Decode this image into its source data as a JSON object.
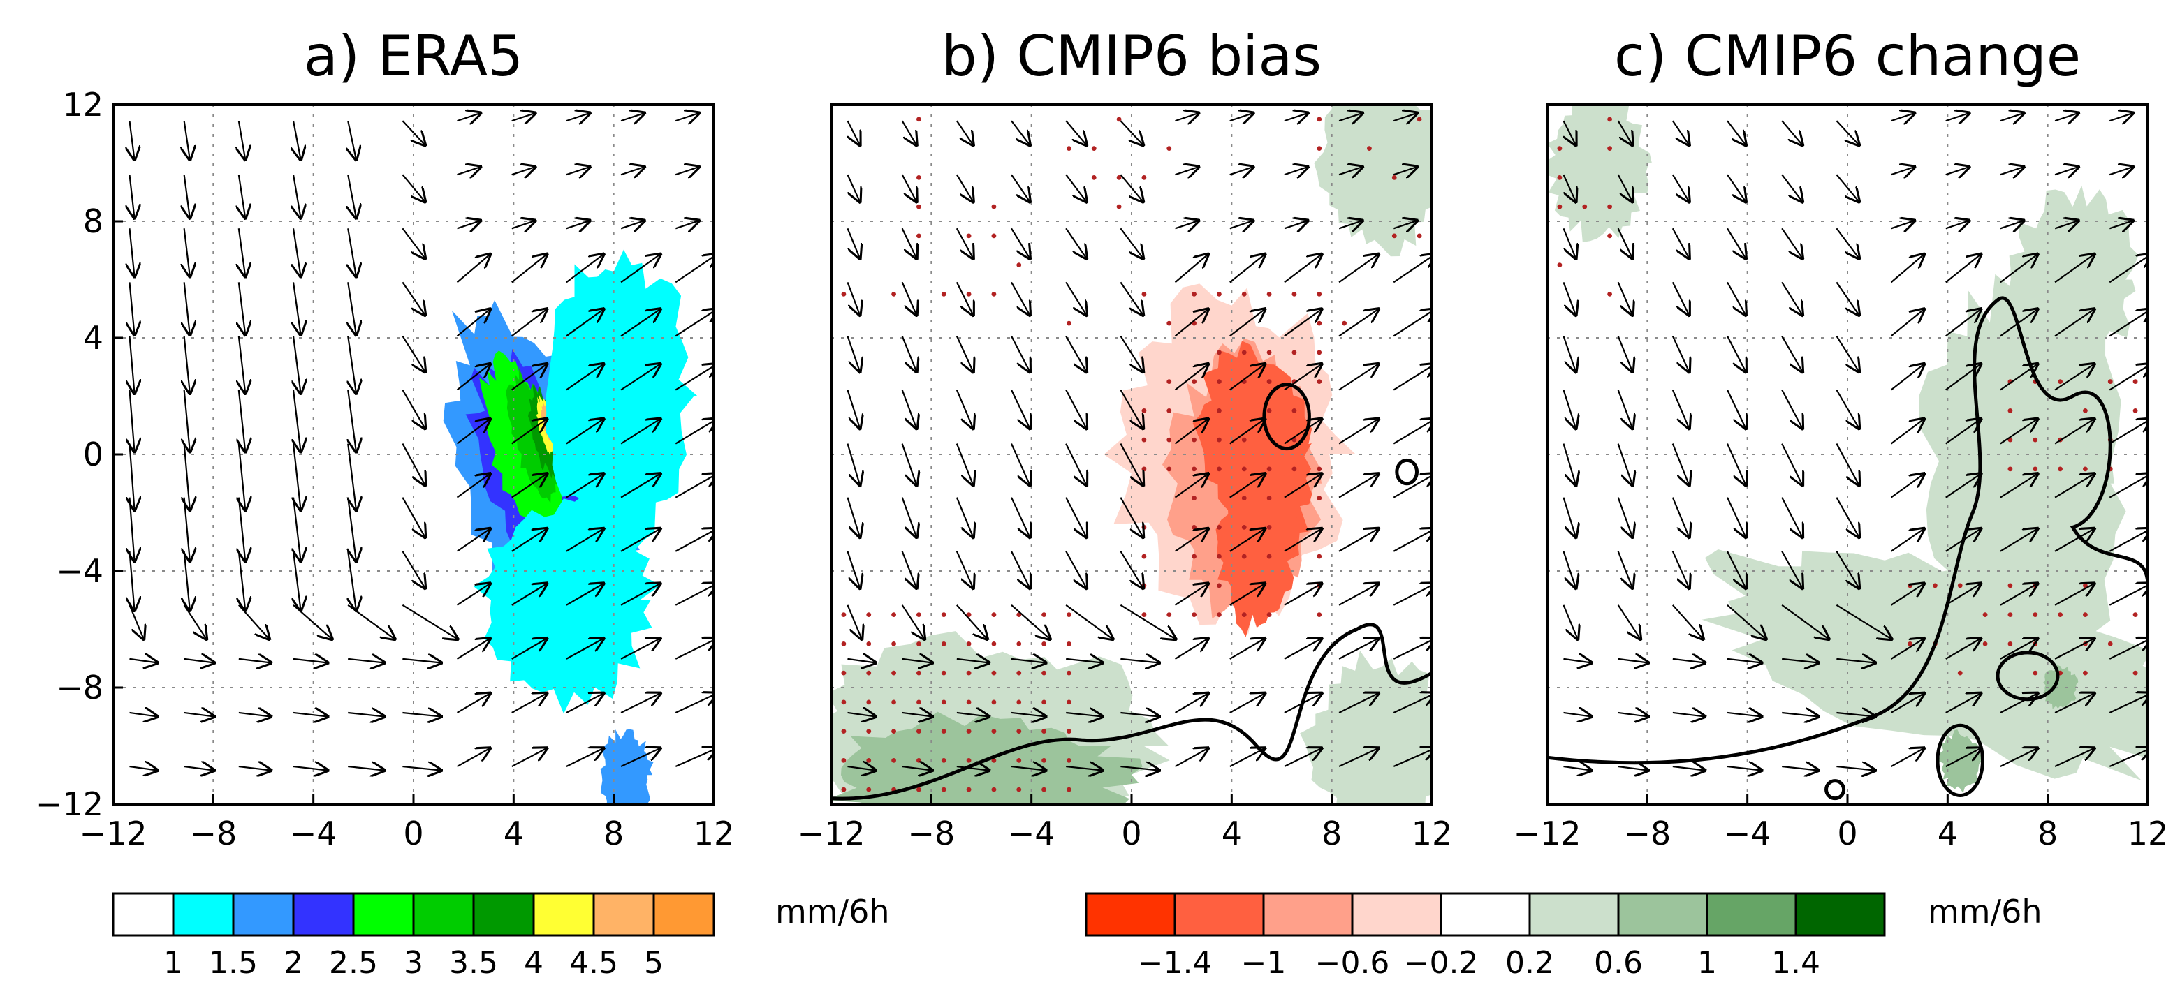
{
  "chart_data": [
    {
      "type": "heatmap",
      "title": "a) ERA5",
      "overlay": "wind vectors",
      "xlim": [
        -12,
        12
      ],
      "ylim": [
        -12,
        12
      ],
      "x_ticks": [
        "-12",
        "-8",
        "-4",
        "0",
        "4",
        "8",
        "12"
      ],
      "y_ticks": [
        "12",
        "8",
        "4",
        "0",
        "-4",
        "-8",
        "-12"
      ],
      "grid": true,
      "shading": [
        {
          "x": 5,
          "y": -1,
          "sx": 3.0,
          "sy": 6.0,
          "rot": -0.35,
          "level": 2
        },
        {
          "x": 5,
          "y": -1,
          "sx": 2.0,
          "sy": 4.5,
          "rot": -0.35,
          "level": 3
        },
        {
          "x": 4.5,
          "y": 0,
          "sx": 1.3,
          "sy": 3.4,
          "rot": -0.3,
          "level": 4
        },
        {
          "x": 4.8,
          "y": 0.6,
          "sx": 0.8,
          "sy": 2.2,
          "rot": -0.25,
          "level": 5
        },
        {
          "x": 5.2,
          "y": 0.8,
          "sx": 0.5,
          "sy": 1.5,
          "rot": -0.2,
          "level": 6
        },
        {
          "x": 5.3,
          "y": 1.0,
          "sx": 0.3,
          "sy": 1.0,
          "rot": -0.2,
          "level": 7
        },
        {
          "x": 5.35,
          "y": 1.1,
          "sx": 0.18,
          "sy": 0.6,
          "rot": -0.2,
          "level": 8
        },
        {
          "x": 6,
          "y": -5,
          "sx": 3.5,
          "sy": 3.5,
          "rot": 0,
          "level": 1
        },
        {
          "x": 8,
          "y": 2,
          "sx": 3.0,
          "sy": 5.0,
          "rot": 0,
          "level": 1
        },
        {
          "x": 8.5,
          "y": -11,
          "sx": 1.0,
          "sy": 1.5,
          "rot": 0,
          "level": 2
        }
      ],
      "vectors": {
        "rows": 13,
        "cols": 11
      }
    },
    {
      "type": "heatmap",
      "title": "b) CMIP6 bias",
      "overlay": "wind vectors, significance dots, contours",
      "xlim": [
        -12,
        12
      ],
      "ylim": [
        -12,
        12
      ],
      "x_ticks": [
        "-12",
        "-8",
        "-4",
        "0",
        "4",
        "8",
        "12"
      ],
      "grid": true,
      "shading": [
        {
          "x": 3,
          "y": 1,
          "sx": 6.0,
          "sy": 7.0,
          "rot": 0,
          "level": 4
        },
        {
          "x": 4,
          "y": 0,
          "sx": 4.5,
          "sy": 5.5,
          "rot": 0,
          "level": 3
        },
        {
          "x": 4.5,
          "y": -1,
          "sx": 3.0,
          "sy": 4.5,
          "rot": 0,
          "level": 2
        },
        {
          "x": 5,
          "y": 0,
          "sx": 2.2,
          "sy": 3.5,
          "rot": -0.2,
          "level": 1
        },
        {
          "x": 5,
          "y": -3,
          "sx": 1.5,
          "sy": 3.0,
          "rot": 0,
          "level": 1
        },
        {
          "x": -10,
          "y": 10,
          "sx": 2.0,
          "sy": 3.0,
          "rot": 0,
          "level": 4
        },
        {
          "x": -6,
          "y": -10,
          "sx": 7.0,
          "sy": 3.5,
          "rot": 0,
          "level": 5
        },
        {
          "x": -6,
          "y": -11,
          "sx": 6.0,
          "sy": 2.0,
          "rot": 0,
          "level": 6
        },
        {
          "x": 10,
          "y": -10,
          "sx": 3.0,
          "sy": 3.0,
          "rot": 0,
          "level": 5
        },
        {
          "x": 10,
          "y": 10,
          "sx": 2.5,
          "sy": 3.0,
          "rot": 0,
          "level": 5
        }
      ],
      "vectors": {
        "rows": 13,
        "cols": 11
      }
    },
    {
      "type": "heatmap",
      "title": "c) CMIP6 change",
      "overlay": "wind vectors, significance dots, contours",
      "xlim": [
        -12,
        12
      ],
      "ylim": [
        -12,
        12
      ],
      "x_ticks": [
        "-12",
        "-8",
        "-4",
        "0",
        "4",
        "8",
        "12"
      ],
      "grid": true,
      "shading": [
        {
          "x": 4,
          "y": -7,
          "sx": 10.0,
          "sy": 3.0,
          "rot": 0.3,
          "level": 5
        },
        {
          "x": 7,
          "y": -1,
          "sx": 4.0,
          "sy": 7.0,
          "rot": 0,
          "level": 5
        },
        {
          "x": 9,
          "y": 6,
          "sx": 2.5,
          "sy": 3.0,
          "rot": 0,
          "level": 5
        },
        {
          "x": -10,
          "y": 10,
          "sx": 2.0,
          "sy": 2.5,
          "rot": 0,
          "level": 5
        },
        {
          "x": 4.5,
          "y": -10.5,
          "sx": 0.8,
          "sy": 1.0,
          "rot": 0,
          "level": 6
        },
        {
          "x": 8.5,
          "y": -8,
          "sx": 0.7,
          "sy": 0.7,
          "rot": 0,
          "level": 6
        }
      ],
      "vectors": {
        "rows": 13,
        "cols": 11
      }
    }
  ],
  "colorbars": [
    {
      "colors": [
        "#ffffff",
        "#00ffff",
        "#3399ff",
        "#3333ff",
        "#00ff00",
        "#00cc00",
        "#009900",
        "#ffff33",
        "#ffb366",
        "#ff9933"
      ],
      "labels": [
        "1",
        "1.5",
        "2",
        "2.5",
        "3",
        "3.5",
        "4",
        "4.5",
        "5"
      ],
      "unit": "mm/6h"
    },
    {
      "colors": [
        "#ff3300",
        "#ff6040",
        "#ffa08a",
        "#ffd6cc",
        "#ffffff",
        "#cce0cc",
        "#9cc49c",
        "#66a566",
        "#006600"
      ],
      "labels": [
        "-1.4",
        "-1",
        "-0.6",
        "-0.2",
        "0.2",
        "0.6",
        "1",
        "1.4"
      ],
      "unit": "mm/6h"
    }
  ]
}
